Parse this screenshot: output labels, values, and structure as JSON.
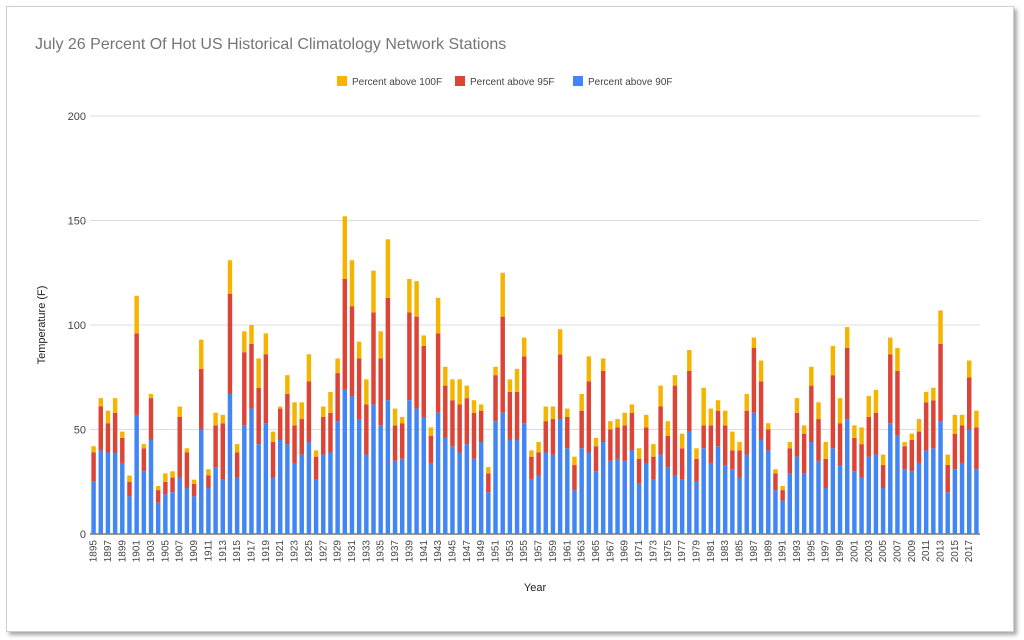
{
  "chart_data": {
    "type": "bar",
    "stacked": true,
    "title": "July 26 Percent Of Hot US Historical Climatology Network Stations",
    "xlabel": "Year",
    "ylabel": "Temperature (F)",
    "ylim": [
      0,
      200
    ],
    "yticks": [
      0,
      50,
      100,
      150,
      200
    ],
    "grid": true,
    "legend_position": "top",
    "categories": [
      1895,
      1896,
      1897,
      1898,
      1899,
      1900,
      1901,
      1902,
      1903,
      1904,
      1905,
      1906,
      1907,
      1908,
      1909,
      1910,
      1911,
      1912,
      1913,
      1914,
      1915,
      1916,
      1917,
      1918,
      1919,
      1920,
      1921,
      1922,
      1923,
      1924,
      1925,
      1926,
      1927,
      1928,
      1929,
      1930,
      1931,
      1932,
      1933,
      1934,
      1935,
      1936,
      1937,
      1938,
      1939,
      1940,
      1941,
      1942,
      1943,
      1944,
      1945,
      1946,
      1947,
      1948,
      1949,
      1950,
      1951,
      1952,
      1953,
      1954,
      1955,
      1956,
      1957,
      1958,
      1959,
      1960,
      1961,
      1962,
      1963,
      1964,
      1965,
      1966,
      1967,
      1968,
      1969,
      1970,
      1971,
      1972,
      1973,
      1974,
      1975,
      1976,
      1977,
      1978,
      1979,
      1980,
      1981,
      1982,
      1983,
      1984,
      1985,
      1986,
      1987,
      1988,
      1989,
      1990,
      1991,
      1992,
      1993,
      1994,
      1995,
      1996,
      1997,
      1998,
      1999,
      2000,
      2001,
      2002,
      2003,
      2004,
      2005,
      2006,
      2007,
      2008,
      2009,
      2010,
      2011,
      2012,
      2013,
      2014,
      2015,
      2016,
      2017,
      2018
    ],
    "series": [
      {
        "name": "Percent above 90F",
        "color": "#4285f4",
        "values": [
          25,
          40,
          39,
          39,
          34,
          18,
          57,
          30,
          45,
          15,
          19,
          20,
          27,
          22,
          18,
          50,
          22,
          32,
          26,
          67,
          27,
          52,
          60,
          43,
          53,
          27,
          45,
          43,
          34,
          38,
          44,
          26,
          38,
          39,
          54,
          69,
          66,
          55,
          38,
          62,
          52,
          64,
          35,
          36,
          64,
          60,
          56,
          34,
          58,
          46,
          42,
          39,
          43,
          36,
          44,
          20,
          54,
          58,
          45,
          45,
          53,
          26,
          28,
          39,
          38,
          55,
          41,
          21,
          41,
          39,
          30,
          44,
          35,
          36,
          35,
          40,
          24,
          34,
          26,
          38,
          32,
          28,
          26,
          49,
          25,
          41,
          34,
          42,
          33,
          31,
          27,
          38,
          58,
          45,
          40,
          21,
          16,
          29,
          37,
          29,
          44,
          35,
          22,
          41,
          33,
          55,
          30,
          27,
          37,
          38,
          22,
          53,
          47,
          31,
          30,
          34,
          40,
          41,
          54,
          20,
          31,
          34,
          50,
          31
        ],
        "labels_visible": false
      },
      {
        "name": "Percent above 95F",
        "color": "#db4437",
        "values": [
          14,
          21,
          14,
          19,
          12,
          7,
          39,
          11,
          20,
          6,
          6,
          7,
          29,
          17,
          6,
          29,
          6,
          20,
          27,
          48,
          12,
          35,
          31,
          27,
          33,
          17,
          15,
          24,
          18,
          17,
          29,
          11,
          18,
          19,
          23,
          53,
          43,
          29,
          24,
          44,
          32,
          49,
          17,
          17,
          42,
          44,
          34,
          13,
          38,
          25,
          22,
          23,
          22,
          22,
          15,
          9,
          22,
          46,
          23,
          23,
          32,
          11,
          11,
          15,
          17,
          31,
          15,
          12,
          18,
          34,
          12,
          34,
          15,
          15,
          17,
          18,
          12,
          17,
          11,
          23,
          15,
          43,
          15,
          29,
          11,
          11,
          18,
          17,
          19,
          9,
          13,
          21,
          31,
          28,
          10,
          8,
          5,
          12,
          21,
          19,
          27,
          20,
          14,
          35,
          20,
          34,
          16,
          16,
          19,
          20,
          11,
          33,
          31,
          11,
          15,
          15,
          23,
          23,
          37,
          13,
          17,
          18,
          25,
          20
        ],
        "labels_visible": false
      },
      {
        "name": "Percent above 100F",
        "color": "#f4b400",
        "values": [
          3,
          4,
          6,
          7,
          3,
          3,
          18,
          2,
          2,
          2,
          4,
          3,
          5,
          2,
          2,
          14,
          3,
          6,
          4,
          16,
          4,
          10,
          9,
          14,
          10,
          5,
          1,
          9,
          11,
          8,
          13,
          3,
          5,
          10,
          7,
          30,
          22,
          8,
          12,
          20,
          13,
          28,
          8,
          3,
          16,
          17,
          5,
          4,
          17,
          9,
          10,
          12,
          6,
          6,
          3,
          3,
          4,
          21,
          6,
          11,
          9,
          3,
          5,
          7,
          6,
          12,
          4,
          4,
          8,
          12,
          4,
          6,
          4,
          4,
          6,
          4,
          5,
          6,
          6,
          10,
          7,
          5,
          7,
          10,
          5,
          18,
          8,
          5,
          7,
          9,
          4,
          8,
          5,
          10,
          3,
          2,
          2,
          3,
          7,
          4,
          9,
          8,
          8,
          14,
          12,
          10,
          6,
          8,
          10,
          11,
          5,
          8,
          11,
          2,
          3,
          6,
          5,
          6,
          16,
          5,
          9,
          5,
          8,
          8
        ],
        "labels_visible": false
      }
    ]
  },
  "x_tick_labels": [
    "1895",
    "1897",
    "1899",
    "1901",
    "1903",
    "1905",
    "1907",
    "1909",
    "1911",
    "1913",
    "1915",
    "1917",
    "1919",
    "1921",
    "1923",
    "1925",
    "1927",
    "1929",
    "1931",
    "1933",
    "1935",
    "1937",
    "1939",
    "1941",
    "1943",
    "1945",
    "1947",
    "1949",
    "1951",
    "1953",
    "1955",
    "1957",
    "1959",
    "1961",
    "1963",
    "1965",
    "1967",
    "1969",
    "1971",
    "1973",
    "1975",
    "1977",
    "1979",
    "1981",
    "1983",
    "1985",
    "1987",
    "1989",
    "1991",
    "1993",
    "1995",
    "1997",
    "1999",
    "2001",
    "2003",
    "2005",
    "2007",
    "2009",
    "2011",
    "2013",
    "2015",
    "2017"
  ]
}
